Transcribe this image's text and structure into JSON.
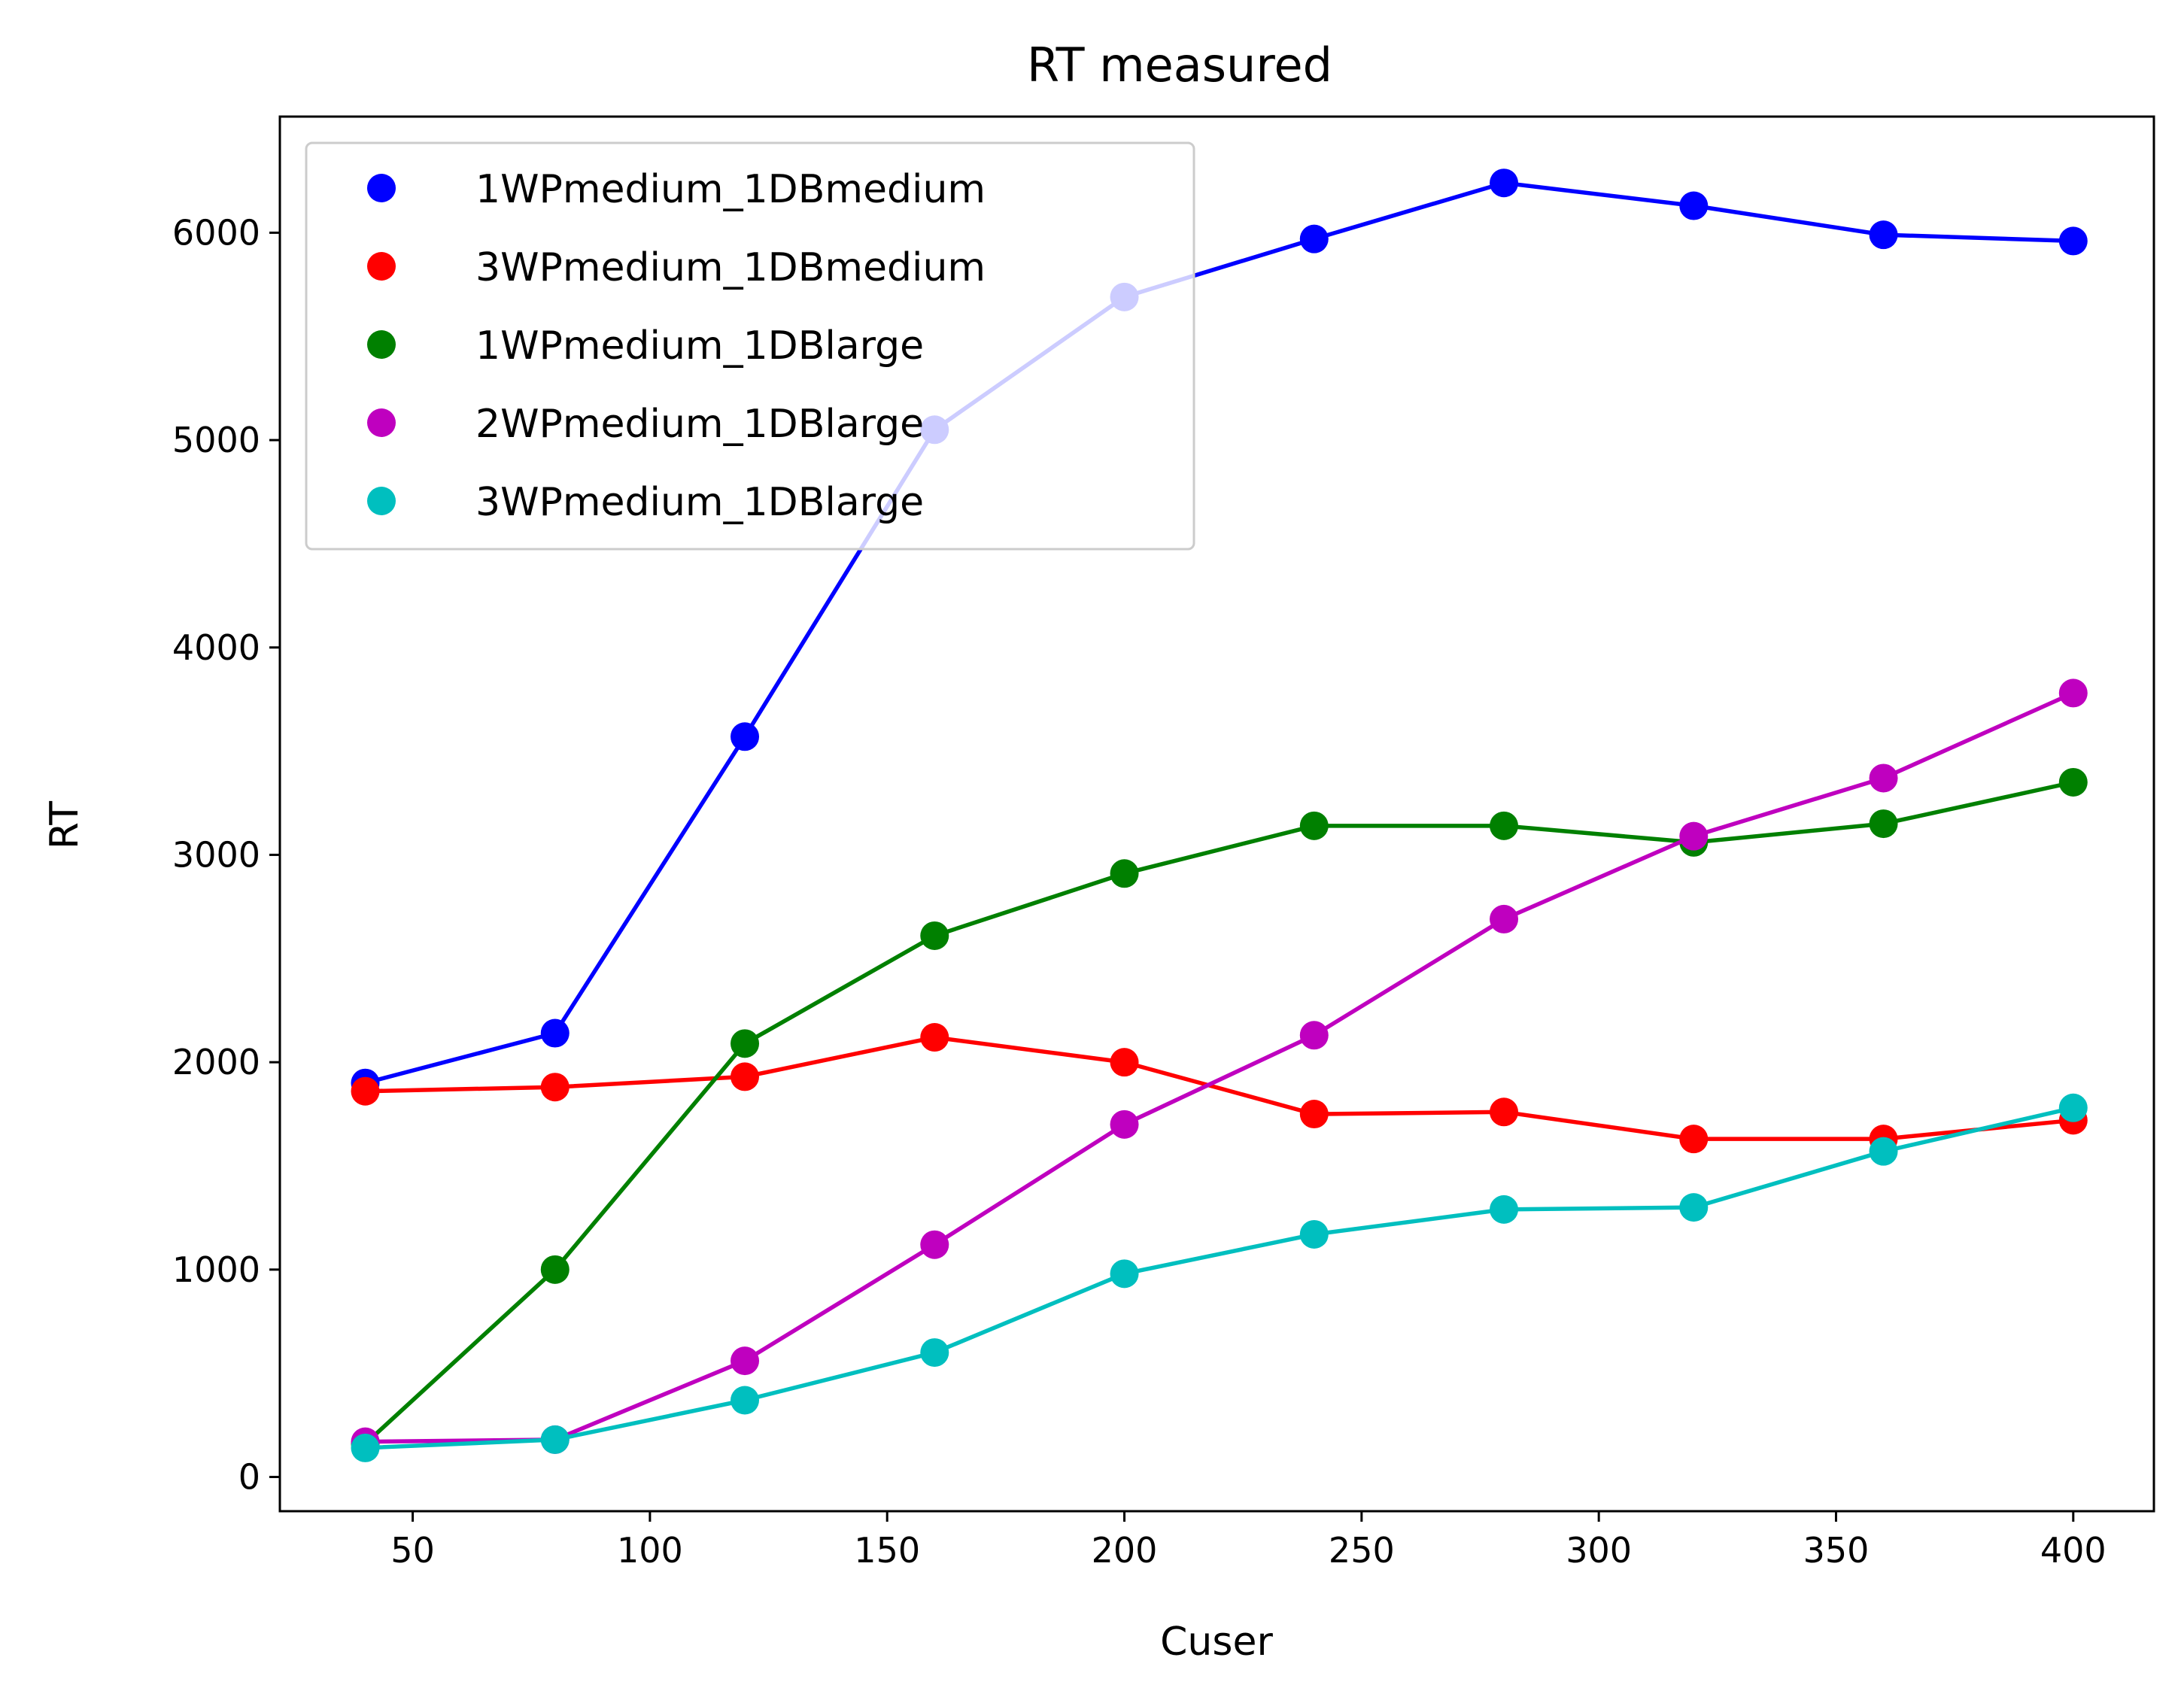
{
  "chart_data": {
    "type": "line",
    "title": "RT measured",
    "xlabel": "Cuser",
    "ylabel": "RT",
    "xlim": [
      22,
      417
    ],
    "ylim": [
      -165,
      6560
    ],
    "xticks": [
      50,
      100,
      150,
      200,
      250,
      300,
      350,
      400
    ],
    "yticks": [
      0,
      1000,
      2000,
      3000,
      4000,
      5000,
      6000
    ],
    "grid": false,
    "legend_position": "upper left",
    "x": [
      40,
      80,
      120,
      160,
      200,
      240,
      280,
      320,
      360,
      400
    ],
    "series": [
      {
        "name": "1WPmedium_1DBmedium",
        "color": "#0000ff",
        "values": [
          1900,
          2140,
          3570,
          5050,
          5690,
          5970,
          6240,
          6130,
          5990,
          5960
        ]
      },
      {
        "name": "3WPmedium_1DBmedium",
        "color": "#ff0000",
        "values": [
          1860,
          1880,
          1930,
          2120,
          2000,
          1750,
          1760,
          1630,
          1630,
          1720
        ]
      },
      {
        "name": "1WPmedium_1DBlarge",
        "color": "#008000",
        "values": [
          160,
          1000,
          2090,
          2610,
          2910,
          3140,
          3140,
          3060,
          3150,
          3350
        ]
      },
      {
        "name": "2WPmedium_1DBlarge",
        "color": "#bf00bf",
        "values": [
          170,
          180,
          560,
          1120,
          1700,
          2130,
          2690,
          3090,
          3370,
          3780
        ]
      },
      {
        "name": "3WPmedium_1DBlarge",
        "color": "#00bfbf",
        "values": [
          140,
          180,
          370,
          600,
          980,
          1170,
          1290,
          1300,
          1570,
          1780
        ]
      }
    ]
  }
}
